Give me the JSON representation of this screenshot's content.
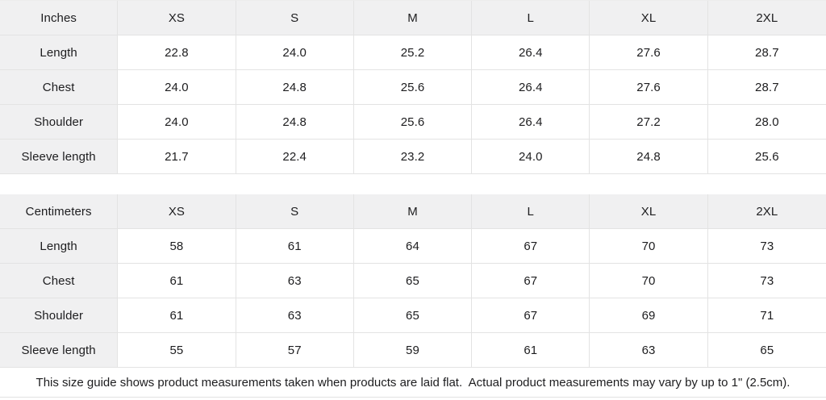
{
  "tables": [
    {
      "unit_label": "Inches",
      "sizes": [
        "XS",
        "S",
        "M",
        "L",
        "XL",
        "2XL"
      ],
      "rows": [
        {
          "label": "Length",
          "values": [
            "22.8",
            "24.0",
            "25.2",
            "26.4",
            "27.6",
            "28.7"
          ]
        },
        {
          "label": "Chest",
          "values": [
            "24.0",
            "24.8",
            "25.6",
            "26.4",
            "27.6",
            "28.7"
          ]
        },
        {
          "label": "Shoulder",
          "values": [
            "24.0",
            "24.8",
            "25.6",
            "26.4",
            "27.2",
            "28.0"
          ]
        },
        {
          "label": "Sleeve length",
          "values": [
            "21.7",
            "22.4",
            "23.2",
            "24.0",
            "24.8",
            "25.6"
          ]
        }
      ]
    },
    {
      "unit_label": "Centimeters",
      "sizes": [
        "XS",
        "S",
        "M",
        "L",
        "XL",
        "2XL"
      ],
      "rows": [
        {
          "label": "Length",
          "values": [
            "58",
            "61",
            "64",
            "67",
            "70",
            "73"
          ]
        },
        {
          "label": "Chest",
          "values": [
            "61",
            "63",
            "65",
            "67",
            "70",
            "73"
          ]
        },
        {
          "label": "Shoulder",
          "values": [
            "61",
            "63",
            "65",
            "67",
            "69",
            "71"
          ]
        },
        {
          "label": "Sleeve length",
          "values": [
            "55",
            "57",
            "59",
            "61",
            "63",
            "65"
          ]
        }
      ]
    }
  ],
  "footer": {
    "note": "This size guide shows product measurements taken when products are laid flat.  Actual product measurements may vary by up to 1\" (2.5cm)."
  },
  "colors": {
    "header_bg": "#f0f0f1",
    "cell_bg": "#ffffff",
    "border": "#e3e3e3",
    "text": "#1d1d1f"
  }
}
